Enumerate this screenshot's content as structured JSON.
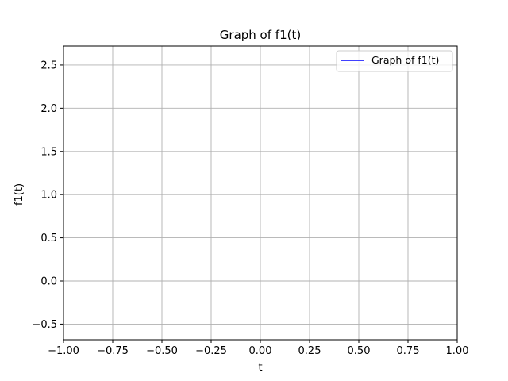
{
  "chart_data": {
    "type": "line",
    "title": "Graph of f1(t)",
    "xlabel": "t",
    "ylabel": "f1(t)",
    "xlim": [
      -1.0,
      1.0
    ],
    "ylim": [
      -0.68,
      2.72
    ],
    "xticks": [
      -1.0,
      -0.75,
      -0.5,
      -0.25,
      0.0,
      0.25,
      0.5,
      0.75,
      1.0
    ],
    "xtick_labels": [
      "−1.00",
      "−0.75",
      "−0.50",
      "−0.25",
      "0.00",
      "0.25",
      "0.50",
      "0.75",
      "1.00"
    ],
    "yticks": [
      -0.5,
      0.0,
      0.5,
      1.0,
      1.5,
      2.0,
      2.5
    ],
    "ytick_labels": [
      "−0.5",
      "0.0",
      "0.5",
      "1.0",
      "1.5",
      "2.0",
      "2.5"
    ],
    "grid": true,
    "legend_position": "top-right",
    "series": [
      {
        "name": "Graph of f1(t)",
        "color": "#0000ff",
        "x": [],
        "y": []
      }
    ]
  },
  "colors": {
    "grid": "#b0b0b0",
    "axes": "#000000",
    "legend_border": "#cccccc"
  }
}
